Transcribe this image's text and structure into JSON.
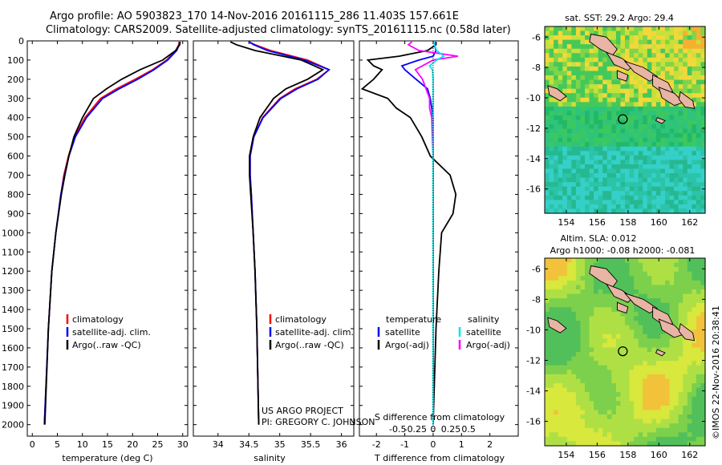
{
  "header": {
    "line1": "Argo profile: AO 5903823_170 14-Nov-2016 20161115_286 11.403S 157.661E",
    "line2": "Climatology: CARS2009. Satellite-adjusted climatology: synTS_20161115.nc (0.58d later)"
  },
  "map_top": {
    "title": "sat. SST: 29.2 Argo: 29.4"
  },
  "map_bottom": {
    "title1": "Altim. SLA: 0.012",
    "title2": "Argo h1000: -0.08 h2000: -0.081"
  },
  "credit": "©IMOS 22-Nov-2016 20:38:41",
  "project": {
    "line1": "US ARGO PROJECT",
    "line2": "PI: GREGORY C. JOHNSON"
  },
  "legend_ts": {
    "clim": "climatology",
    "sat": "satellite-adj. clim.",
    "argo": "Argo(..raw -QC)"
  },
  "legend_diff": {
    "temp_head": "temperature",
    "sal_head": "salinity",
    "sat": "satellite",
    "argo": "Argo(-adj)"
  },
  "colors": {
    "clim": "#ff0000",
    "sat": "#0000ff",
    "argo": "#000000",
    "sal_sat": "#00e5ee",
    "sal_argo": "#ff00ff",
    "land": "#e8b4a4"
  },
  "chart_data": [
    {
      "type": "line",
      "panel": "temperature",
      "xlabel": "temperature (deg C)",
      "ylabel": "",
      "xlim": [
        -1,
        31
      ],
      "ylim": [
        2060,
        0
      ],
      "xticks": [
        0,
        5,
        10,
        15,
        20,
        25,
        30
      ],
      "yticks": [
        0,
        100,
        200,
        300,
        400,
        500,
        600,
        700,
        800,
        900,
        1000,
        1100,
        1200,
        1300,
        1400,
        1500,
        1600,
        1700,
        1800,
        1900,
        2000
      ],
      "y": [
        5,
        20,
        50,
        100,
        150,
        200,
        250,
        300,
        400,
        500,
        600,
        700,
        800,
        1000,
        1200,
        1500,
        2000
      ],
      "series": [
        {
          "name": "climatology",
          "values": [
            29.3,
            29.2,
            28.6,
            26.8,
            24.0,
            20.5,
            16.8,
            13.6,
            10.5,
            8.4,
            7.2,
            6.3,
            5.7,
            4.7,
            3.9,
            3.2,
            2.4
          ]
        },
        {
          "name": "satellite-adj. clim.",
          "values": [
            29.4,
            29.3,
            28.8,
            27.0,
            24.3,
            21.0,
            17.3,
            14.0,
            10.8,
            8.6,
            7.3,
            6.4,
            5.7,
            4.7,
            3.9,
            3.2,
            2.4
          ]
        },
        {
          "name": "Argo(..raw -QC)",
          "values": [
            29.5,
            29.4,
            28.6,
            26.0,
            21.5,
            17.8,
            14.8,
            12.2,
            10.0,
            8.3,
            7.3,
            6.5,
            5.8,
            4.7,
            3.9,
            3.2,
            2.5
          ]
        }
      ]
    },
    {
      "type": "line",
      "panel": "salinity",
      "xlabel": "salinity",
      "ylabel": "",
      "xlim": [
        33.6,
        36.2
      ],
      "ylim": [
        2060,
        0
      ],
      "xticks": [
        34,
        34.5,
        35,
        35.5,
        36
      ],
      "y": [
        5,
        20,
        50,
        100,
        150,
        200,
        250,
        300,
        400,
        500,
        600,
        700,
        800,
        1000,
        1200,
        1500,
        2000
      ],
      "series": [
        {
          "name": "climatology",
          "values": [
            34.5,
            34.6,
            34.85,
            35.45,
            35.8,
            35.6,
            35.25,
            35.0,
            34.72,
            34.58,
            34.52,
            34.52,
            34.54,
            34.57,
            34.6,
            34.63,
            34.66
          ]
        },
        {
          "name": "satellite-adj. clim.",
          "values": [
            34.5,
            34.58,
            34.8,
            35.4,
            35.8,
            35.62,
            35.28,
            35.02,
            34.73,
            34.58,
            34.52,
            34.52,
            34.54,
            34.57,
            34.6,
            34.63,
            34.66
          ]
        },
        {
          "name": "Argo(..raw -QC)",
          "values": [
            34.2,
            34.3,
            34.6,
            35.35,
            35.7,
            35.45,
            35.1,
            34.9,
            34.68,
            34.57,
            34.51,
            34.51,
            34.53,
            34.57,
            34.6,
            34.63,
            34.66
          ]
        }
      ]
    },
    {
      "type": "line",
      "panel": "difference",
      "xlabel": "T difference from climatology",
      "xlabel_top": "S difference from climatology",
      "xlim": [
        -2.6,
        3.0
      ],
      "ylim": [
        2060,
        0
      ],
      "xticks": [
        -2,
        -1,
        0,
        1,
        2
      ],
      "xticks_sal": [
        -0.5,
        -0.25,
        0,
        0.25,
        0.5
      ],
      "xticks_sal_labels": [
        "-0.5",
        "-0.25",
        "0",
        "0.25",
        "0.5"
      ],
      "y": [
        5,
        20,
        50,
        80,
        100,
        130,
        150,
        200,
        250,
        300,
        350,
        400,
        500,
        600,
        700,
        800,
        900,
        1000,
        1200,
        1500,
        2000
      ],
      "series": [
        {
          "name": "temperature satellite",
          "values": [
            0.1,
            0.05,
            0.1,
            0.0,
            -0.5,
            -1.1,
            -1.0,
            -0.6,
            -0.2,
            -0.1,
            -0.05,
            0.0,
            0.0,
            0.0,
            0.0,
            0.0,
            0.0,
            0.0,
            0.0,
            0.0,
            0.0
          ]
        },
        {
          "name": "temperature Argo(-adj)",
          "values": [
            0.1,
            0.1,
            -0.2,
            -1.2,
            -2.3,
            -2.1,
            -1.8,
            -2.1,
            -2.5,
            -1.6,
            -1.3,
            -0.8,
            -0.4,
            -0.1,
            0.6,
            0.8,
            0.7,
            0.3,
            0.2,
            0.1,
            0.0
          ]
        },
        {
          "name": "salinity satellite",
          "values": [
            0.02,
            0.02,
            0.05,
            0.15,
            0.05,
            -0.05,
            -0.01,
            0.0,
            0.0,
            0.0,
            0.0,
            0.0,
            0.0,
            0.0,
            0.0,
            0.0,
            0.0,
            0.0,
            0.0,
            0.0,
            0.0
          ]
        },
        {
          "name": "salinity Argo(-adj)",
          "values": [
            -0.3,
            -0.35,
            -0.2,
            0.35,
            0.0,
            -0.15,
            -0.25,
            -0.15,
            -0.1,
            -0.05,
            -0.05,
            -0.02,
            -0.01,
            0.0,
            0.0,
            0.0,
            0.0,
            0.0,
            0.0,
            0.0,
            0.0
          ]
        }
      ]
    },
    {
      "type": "heatmap",
      "panel": "map-sst",
      "title": "sat. SST: 29.2 Argo: 29.4",
      "xlim": [
        152.6,
        163.0
      ],
      "ylim": [
        -17.6,
        -5.3
      ],
      "xticks": [
        154,
        156,
        158,
        160,
        162
      ],
      "yticks": [
        -6,
        -8,
        -10,
        -12,
        -14,
        -16
      ],
      "float_position": {
        "lon": 157.661,
        "lat": -11.403
      }
    },
    {
      "type": "heatmap",
      "panel": "map-sla",
      "title": "Altim. SLA: 0.012",
      "xlim": [
        152.6,
        163.0
      ],
      "ylim": [
        -17.6,
        -5.3
      ],
      "xticks": [
        154,
        156,
        158,
        160,
        162
      ],
      "yticks": [
        -6,
        -8,
        -10,
        -12,
        -14,
        -16
      ],
      "float_position": {
        "lon": 157.661,
        "lat": -11.403
      }
    }
  ]
}
